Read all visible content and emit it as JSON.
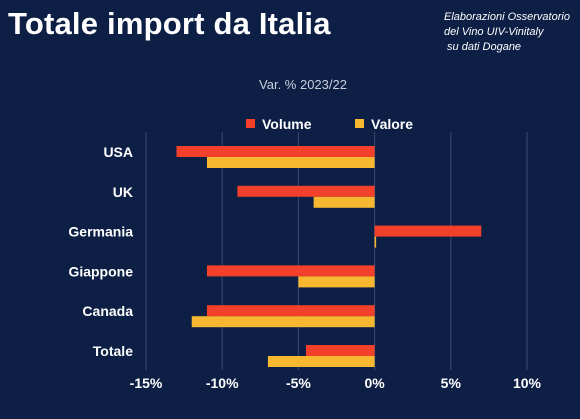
{
  "title": "Totale import da Italia",
  "source_lines": [
    "Elaborazioni Osservatorio",
    "del Vino UIV-Vinitaly",
    " su dati Dogane"
  ],
  "chart_data": {
    "type": "bar",
    "orientation": "horizontal",
    "subtitle": "Var. % 2023/22",
    "categories": [
      "USA",
      "UK",
      "Germania",
      "Giappone",
      "Canada",
      "Totale"
    ],
    "series": [
      {
        "name": "Volume",
        "color": "#f2402a",
        "values": [
          -13,
          -9,
          7,
          -11,
          -11,
          -4.5
        ]
      },
      {
        "name": "Valore",
        "color": "#f7b731",
        "values": [
          -11,
          -4,
          0.1,
          -5,
          -12,
          -7
        ]
      }
    ],
    "xlim": [
      -15,
      10
    ],
    "xticks": [
      "-15%",
      "-10%",
      "-5%",
      "0%",
      "5%",
      "10%"
    ],
    "grid": true,
    "legend_position": "top"
  }
}
